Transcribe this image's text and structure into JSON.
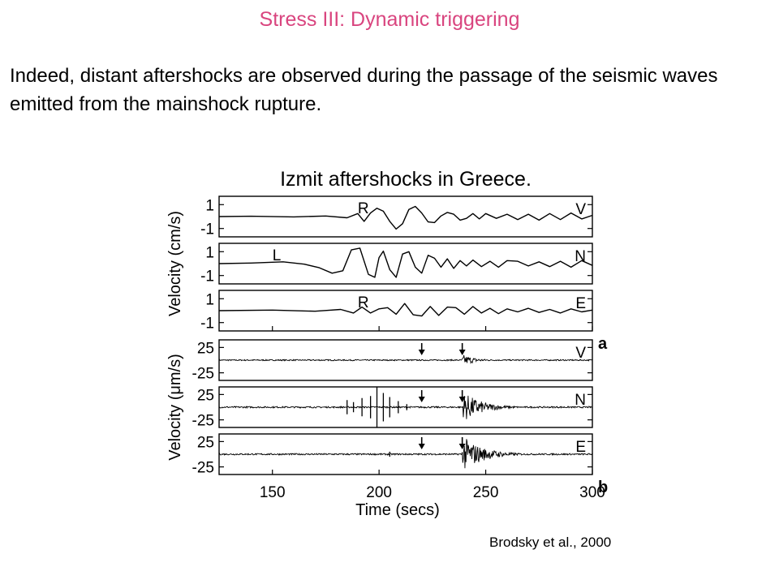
{
  "slide": {
    "title": "Stress III: Dynamic triggering",
    "intro": "Indeed, distant aftershocks are observed during the passage of the seismic waves emitted from the mainshock rupture.",
    "citation": "Brodsky et al., 2000"
  },
  "chart_data": {
    "type": "line",
    "title": "Izmit aftershocks in Greece.",
    "xlabel": "Time (secs)",
    "xlim": [
      125,
      300
    ],
    "xticks": [
      150,
      200,
      250,
      300
    ],
    "groups": [
      {
        "panel_letter": "a",
        "ylabel": "Velocity (cm/s)",
        "unit": "cm/s"
      },
      {
        "panel_letter": "b",
        "ylabel": "Velocity (μm/s)",
        "unit": "μm/s"
      }
    ],
    "panels": [
      {
        "group": 0,
        "component": "V",
        "ylim": [
          -1.7,
          1.7
        ],
        "yticks": [
          1,
          -1
        ],
        "phase_marker": {
          "label": "R",
          "x": 190
        },
        "x": [
          125,
          140,
          160,
          175,
          185,
          190,
          193,
          196,
          199,
          202,
          205,
          208,
          211,
          214,
          217,
          220,
          223,
          226,
          229,
          232,
          235,
          238,
          241,
          244,
          247,
          250,
          255,
          260,
          265,
          270,
          275,
          280,
          285,
          290,
          295,
          300
        ],
        "y": [
          0,
          0.03,
          -0.03,
          0.05,
          -0.1,
          0.25,
          -0.4,
          0.3,
          0.7,
          0.45,
          -0.4,
          -1.05,
          -0.6,
          0.6,
          0.85,
          0.3,
          -0.45,
          -0.5,
          0.05,
          0.35,
          0.2,
          -0.3,
          -0.15,
          0.25,
          -0.2,
          0.25,
          -0.15,
          0.2,
          -0.25,
          0.2,
          -0.3,
          0.25,
          -0.25,
          0.3,
          -0.2,
          0.1
        ]
      },
      {
        "group": 0,
        "component": "N",
        "ylim": [
          -1.7,
          1.7
        ],
        "yticks": [
          1,
          -1
        ],
        "phase_marker": {
          "label": "L",
          "x": 150
        },
        "x": [
          125,
          140,
          155,
          165,
          172,
          178,
          183,
          187,
          191,
          195,
          198,
          200,
          202,
          205,
          208,
          211,
          214,
          217,
          220,
          223,
          226,
          229,
          232,
          235,
          238,
          241,
          244,
          248,
          252,
          256,
          260,
          265,
          270,
          275,
          280,
          285,
          290,
          295,
          300
        ],
        "y": [
          0,
          0.05,
          0.15,
          -0.05,
          -0.35,
          -0.8,
          -0.6,
          1.15,
          1.3,
          -0.9,
          -1.15,
          0.5,
          1.05,
          -0.5,
          -1.15,
          0.8,
          1.0,
          -0.3,
          -0.8,
          0.7,
          0.45,
          -0.3,
          0.4,
          -0.4,
          0.25,
          -0.2,
          0.3,
          -0.25,
          0.2,
          -0.3,
          0.25,
          0.2,
          -0.2,
          0.15,
          -0.25,
          0.2,
          -0.3,
          0.25,
          -0.15
        ]
      },
      {
        "group": 0,
        "component": "E",
        "ylim": [
          -1.7,
          1.7
        ],
        "yticks": [
          1,
          -1
        ],
        "phase_marker": {
          "label": "R",
          "x": 190
        },
        "x": [
          125,
          150,
          170,
          182,
          188,
          192,
          196,
          200,
          204,
          208,
          212,
          216,
          220,
          224,
          228,
          232,
          236,
          240,
          244,
          248,
          252,
          256,
          260,
          265,
          270,
          275,
          280,
          285,
          290,
          295,
          300
        ],
        "y": [
          0,
          0.05,
          -0.05,
          0.1,
          -0.2,
          0.3,
          -0.2,
          0.15,
          0.25,
          -0.3,
          0.6,
          -0.35,
          -0.45,
          0.35,
          -0.4,
          0.3,
          0.25,
          -0.3,
          0.35,
          -0.2,
          0.2,
          -0.25,
          0.15,
          -0.1,
          0.2,
          -0.15,
          0.1,
          -0.2,
          0.15,
          -0.1,
          0.05
        ]
      },
      {
        "group": 1,
        "component": "V",
        "ylim": [
          -40,
          40
        ],
        "yticks": [
          25,
          -25
        ],
        "arrows_x": [
          220,
          239
        ],
        "noise_amp": 1.2,
        "spikes": [],
        "bursts": [
          {
            "start": 239,
            "end": 268,
            "peak": 12
          }
        ]
      },
      {
        "group": 1,
        "component": "N",
        "ylim": [
          -40,
          40
        ],
        "yticks": [
          25,
          -25
        ],
        "arrows_x": [
          220,
          239
        ],
        "noise_amp": 1.5,
        "spikes": [
          {
            "x": 185,
            "a": 14
          },
          {
            "x": 188,
            "a": 10
          },
          {
            "x": 192,
            "a": 18
          },
          {
            "x": 196,
            "a": 22
          },
          {
            "x": 199,
            "a": 40
          },
          {
            "x": 202,
            "a": 28
          },
          {
            "x": 205,
            "a": 20
          },
          {
            "x": 209,
            "a": 12
          },
          {
            "x": 213,
            "a": 6
          }
        ],
        "bursts": [
          {
            "start": 239,
            "end": 282,
            "peak": 33
          }
        ]
      },
      {
        "group": 1,
        "component": "E",
        "ylim": [
          -40,
          40
        ],
        "yticks": [
          25,
          -25
        ],
        "arrows_x": [
          220,
          239
        ],
        "noise_amp": 1.5,
        "spikes": [
          {
            "x": 205,
            "a": 5
          }
        ],
        "bursts": [
          {
            "start": 239,
            "end": 285,
            "peak": 38
          }
        ]
      }
    ]
  }
}
